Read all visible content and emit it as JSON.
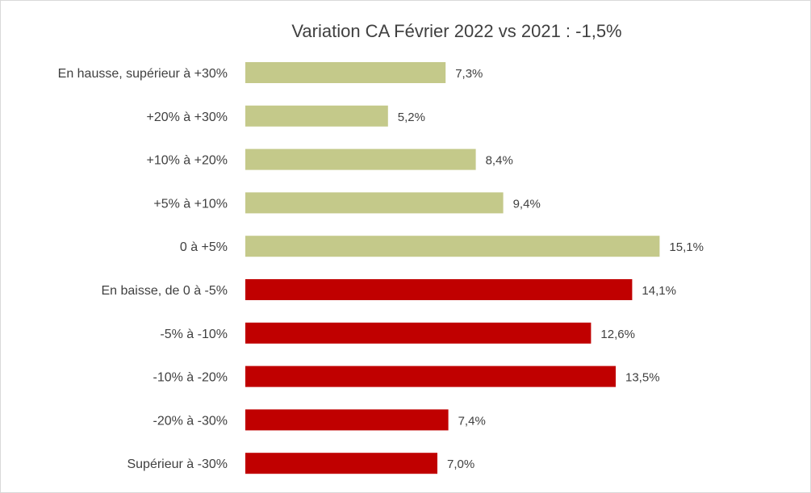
{
  "chart_data": {
    "type": "bar",
    "orientation": "horizontal",
    "title": "Variation CA Février 2022 vs 2021 : -1,5%",
    "xlabel": "",
    "ylabel": "",
    "grid": false,
    "legend": "none",
    "xlim": [
      0,
      16
    ],
    "categories": [
      "En hausse, supérieur à +30%",
      "+20% à +30%",
      "+10% à +20%",
      "+5% à +10%",
      "0 à +5%",
      "En baisse, de 0 à -5%",
      "-5% à -10%",
      "-10% à -20%",
      "-20% à -30%",
      "Supérieur à -30%"
    ],
    "values": [
      7.3,
      5.2,
      8.4,
      9.4,
      15.1,
      14.1,
      12.6,
      13.5,
      7.4,
      7.0
    ],
    "value_labels": [
      "7,3%",
      "5,2%",
      "8,4%",
      "9,4%",
      "15,1%",
      "14,1%",
      "12,6%",
      "13,5%",
      "7,4%",
      "7,0%"
    ],
    "bar_colors": [
      "#c4c98a",
      "#c4c98a",
      "#c4c98a",
      "#c4c98a",
      "#c4c98a",
      "#c00000",
      "#c00000",
      "#c00000",
      "#c00000",
      "#c00000"
    ],
    "text_color": "#404040"
  }
}
